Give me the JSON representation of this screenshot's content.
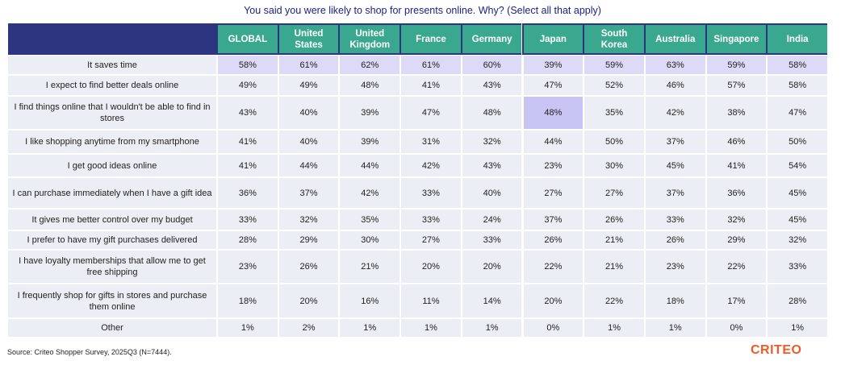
{
  "title": "You said you were likely to shop for presents online. Why? (Select all that apply)",
  "table": {
    "columns": [
      "GLOBAL",
      "United States",
      "United Kingdom",
      "France",
      "Germany",
      "Japan",
      "South Korea",
      "Australia",
      "Singapore",
      "India"
    ],
    "rows": [
      [
        "It saves time",
        "58%",
        "61%",
        "62%",
        "61%",
        "60%",
        "39%",
        "59%",
        "63%",
        "59%",
        "58%"
      ],
      [
        "I expect to find better deals online",
        "49%",
        "49%",
        "48%",
        "41%",
        "43%",
        "47%",
        "52%",
        "46%",
        "57%",
        "58%"
      ],
      [
        "I find things online that I wouldn't be able to find in stores",
        "43%",
        "40%",
        "39%",
        "47%",
        "48%",
        "48%",
        "35%",
        "42%",
        "38%",
        "47%"
      ],
      [
        "I like shopping anytime from my smartphone",
        "41%",
        "40%",
        "39%",
        "31%",
        "32%",
        "44%",
        "50%",
        "37%",
        "46%",
        "50%"
      ],
      [
        "I get good ideas online",
        "41%",
        "44%",
        "44%",
        "42%",
        "43%",
        "23%",
        "30%",
        "45%",
        "41%",
        "54%"
      ],
      [
        "I can purchase immediately when I have a gift idea",
        "36%",
        "37%",
        "42%",
        "33%",
        "40%",
        "27%",
        "27%",
        "37%",
        "36%",
        "45%"
      ],
      [
        "It gives me better control over my budget",
        "33%",
        "32%",
        "35%",
        "33%",
        "24%",
        "37%",
        "26%",
        "33%",
        "32%",
        "45%"
      ],
      [
        "I prefer to have my gift purchases delivered",
        "28%",
        "29%",
        "30%",
        "27%",
        "33%",
        "26%",
        "21%",
        "26%",
        "29%",
        "32%"
      ],
      [
        "I have loyalty memberships that allow me to get free shipping",
        "23%",
        "26%",
        "21%",
        "20%",
        "20%",
        "22%",
        "21%",
        "23%",
        "22%",
        "33%"
      ],
      [
        "I frequently shop for gifts in stores and purchase them online",
        "18%",
        "20%",
        "16%",
        "11%",
        "14%",
        "20%",
        "22%",
        "18%",
        "17%",
        "28%"
      ],
      [
        "Other",
        "1%",
        "2%",
        "1%",
        "1%",
        "1%",
        "0%",
        "1%",
        "1%",
        "0%",
        "1%"
      ]
    ]
  },
  "source": "Source: Criteo Shopper Survey, 2025Q3 (N=7444).",
  "logo": "CRITEO"
}
